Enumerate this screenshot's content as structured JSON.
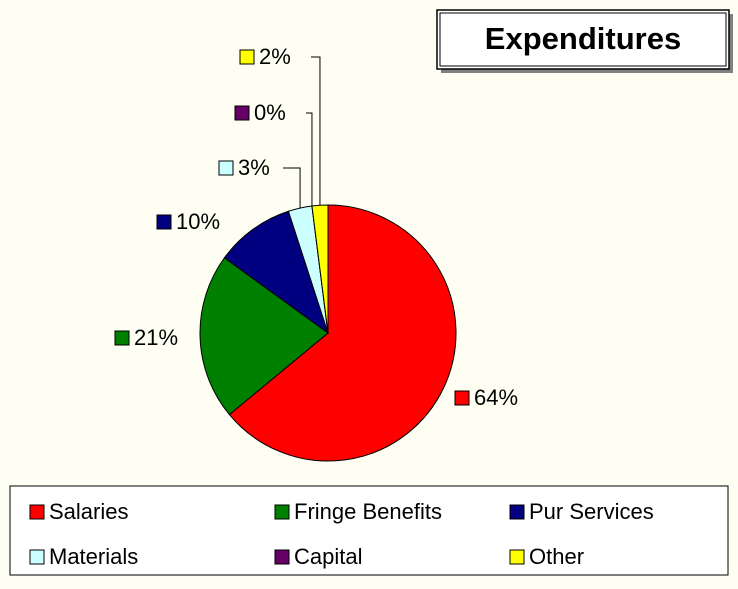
{
  "chart_data": {
    "type": "pie",
    "title": "Expenditures",
    "categories": [
      "Salaries",
      "Fringe Benefits",
      "Pur Services",
      "Materials",
      "Capital",
      "Other"
    ],
    "values": [
      64,
      21,
      10,
      3,
      0,
      2
    ],
    "value_labels": [
      "64%",
      "21%",
      "10%",
      "3%",
      "0%",
      "2%"
    ],
    "colors": [
      "#ff0000",
      "#008000",
      "#000080",
      "#ccffff",
      "#660066",
      "#ffff00"
    ],
    "legend": "bottom"
  }
}
